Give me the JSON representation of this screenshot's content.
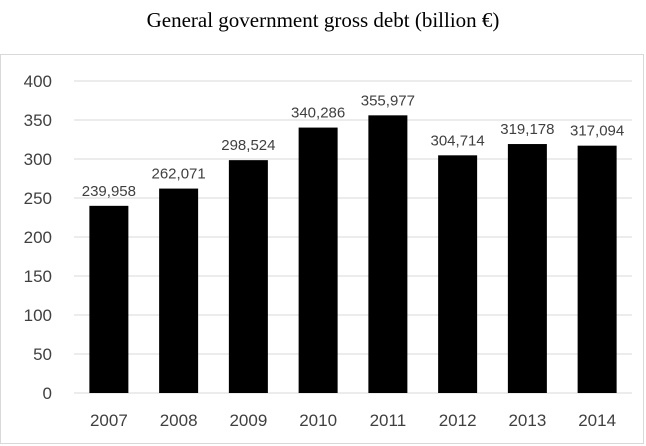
{
  "chart_data": {
    "type": "bar",
    "title": "General government gross debt (billion €)",
    "xlabel": "",
    "ylabel": "",
    "categories": [
      "2007",
      "2008",
      "2009",
      "2010",
      "2011",
      "2012",
      "2013",
      "2014"
    ],
    "values": [
      239.958,
      262.071,
      298.524,
      340.286,
      355.977,
      304.714,
      319.178,
      317.094
    ],
    "data_labels": [
      "239,958",
      "262,071",
      "298,524",
      "340,286",
      "355,977",
      "304,714",
      "319,178",
      "317,094"
    ],
    "ylim": [
      0,
      400
    ],
    "yticks": [
      0,
      50,
      100,
      150,
      200,
      250,
      300,
      350,
      400
    ],
    "grid": true,
    "legend": "none",
    "colors": {
      "bar": "#000000",
      "grid": "#d9d9d9",
      "text": "#404040"
    }
  }
}
